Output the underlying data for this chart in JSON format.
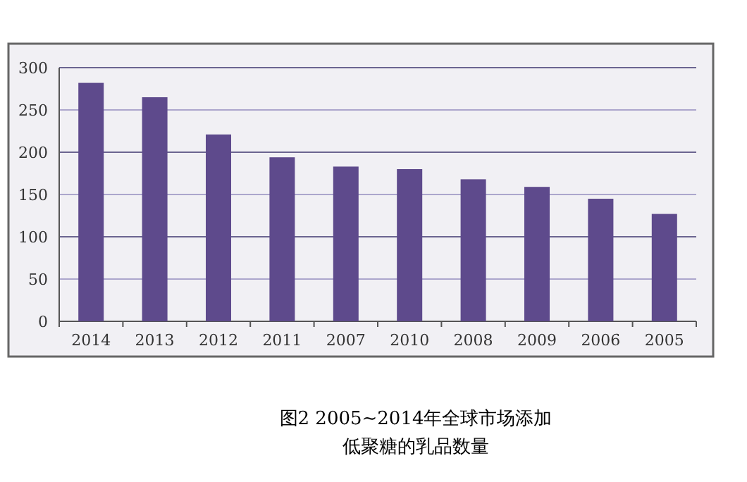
{
  "chart_data": {
    "type": "bar",
    "title": "图2 2005~2014年全球市场添加低聚糖的乳品数量",
    "categories": [
      "2014",
      "2013",
      "2012",
      "2011",
      "2007",
      "2010",
      "2008",
      "2009",
      "2006",
      "2005"
    ],
    "values": [
      282,
      265,
      221,
      194,
      183,
      180,
      168,
      159,
      145,
      127
    ],
    "color": "#5e4a8c",
    "ylim": [
      0,
      300
    ],
    "yticks": [
      0,
      50,
      100,
      150,
      200,
      250,
      300
    ],
    "grid": "y"
  }
}
